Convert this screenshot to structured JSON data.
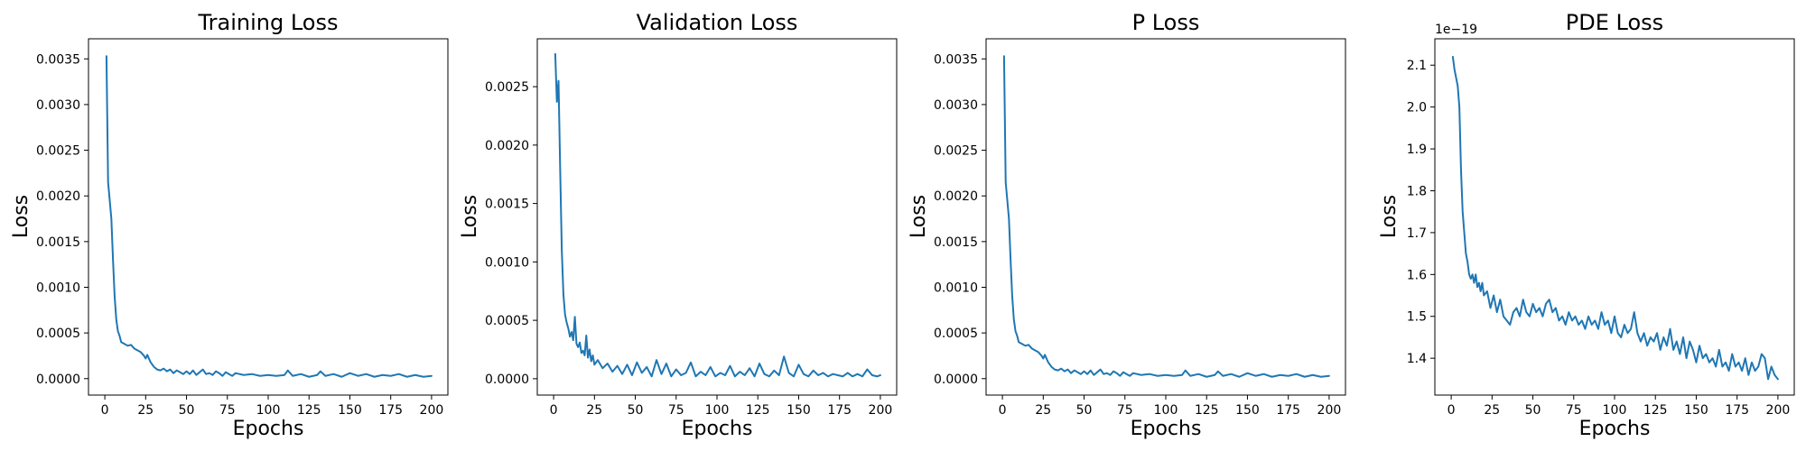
{
  "figure": {
    "panels": [
      {
        "title": "Training Loss",
        "xlabel": "Epochs",
        "ylabel": "Loss"
      },
      {
        "title": "Validation Loss",
        "xlabel": "Epochs",
        "ylabel": "Loss"
      },
      {
        "title": "P Loss",
        "xlabel": "Epochs",
        "ylabel": "Loss"
      },
      {
        "title": "PDE Loss",
        "xlabel": "Epochs",
        "ylabel": "Loss",
        "y_offset_label": "1e−19"
      }
    ]
  },
  "chart_data": [
    {
      "type": "line",
      "title": "Training Loss",
      "xlabel": "Epochs",
      "ylabel": "Loss",
      "xlim": [
        -10,
        210
      ],
      "ylim": [
        -0.00018,
        0.00372
      ],
      "xticks": [
        0,
        25,
        50,
        75,
        100,
        125,
        150,
        175,
        200
      ],
      "xtick_labels": [
        "0",
        "25",
        "50",
        "75",
        "100",
        "125",
        "150",
        "175",
        "200"
      ],
      "yticks": [
        0.0,
        0.0005,
        0.001,
        0.0015,
        0.002,
        0.0025,
        0.003,
        0.0035
      ],
      "ytick_labels": [
        "0.0000",
        "0.0005",
        "0.0010",
        "0.0015",
        "0.0020",
        "0.0025",
        "0.0030",
        "0.0035"
      ],
      "grid": false,
      "color": "#1f77b4",
      "series": [
        {
          "x": [
            1,
            2,
            3,
            4,
            5,
            6,
            7,
            8,
            9,
            10,
            12,
            14,
            16,
            18,
            20,
            22,
            24,
            25,
            26,
            28,
            30,
            32,
            34,
            36,
            38,
            40,
            42,
            44,
            46,
            48,
            50,
            52,
            54,
            56,
            58,
            60,
            62,
            64,
            66,
            68,
            70,
            72,
            74,
            76,
            78,
            80,
            85,
            90,
            95,
            100,
            105,
            110,
            112,
            115,
            120,
            125,
            130,
            132,
            135,
            140,
            145,
            150,
            155,
            160,
            165,
            170,
            175,
            180,
            185,
            190,
            195,
            200
          ],
          "y": [
            0.00353,
            0.00215,
            0.00195,
            0.00175,
            0.0013,
            0.0009,
            0.00065,
            0.00052,
            0.00047,
            0.0004,
            0.00038,
            0.00036,
            0.00037,
            0.00033,
            0.00031,
            0.00029,
            0.00025,
            0.00022,
            0.00026,
            0.00018,
            0.00013,
            0.0001,
            9e-05,
            0.00011,
            8e-05,
            0.0001,
            6e-05,
            9e-05,
            7e-05,
            5e-05,
            8e-05,
            5e-05,
            9e-05,
            4e-05,
            7e-05,
            0.0001,
            5e-05,
            6e-05,
            4e-05,
            8e-05,
            6e-05,
            3e-05,
            7e-05,
            5e-05,
            3e-05,
            6e-05,
            4e-05,
            5e-05,
            3e-05,
            4e-05,
            3e-05,
            4e-05,
            9e-05,
            3e-05,
            5e-05,
            2e-05,
            4e-05,
            8e-05,
            3e-05,
            5e-05,
            2e-05,
            6e-05,
            3e-05,
            5e-05,
            2e-05,
            4e-05,
            3e-05,
            5e-05,
            2e-05,
            4e-05,
            2e-05,
            3e-05
          ]
        }
      ]
    },
    {
      "type": "line",
      "title": "Validation Loss",
      "xlabel": "Epochs",
      "ylabel": "Loss",
      "xlim": [
        -10,
        210
      ],
      "ylim": [
        -0.00014,
        0.00291
      ],
      "xticks": [
        0,
        25,
        50,
        75,
        100,
        125,
        150,
        175,
        200
      ],
      "xtick_labels": [
        "0",
        "25",
        "50",
        "75",
        "100",
        "125",
        "150",
        "175",
        "200"
      ],
      "yticks": [
        0.0,
        0.0005,
        0.001,
        0.0015,
        0.002,
        0.0025
      ],
      "ytick_labels": [
        "0.0000",
        "0.0005",
        "0.0010",
        "0.0015",
        "0.0020",
        "0.0025"
      ],
      "grid": false,
      "color": "#1f77b4",
      "series": [
        {
          "x": [
            1,
            2,
            3,
            4,
            5,
            6,
            7,
            8,
            9,
            10,
            11,
            12,
            13,
            14,
            15,
            16,
            17,
            18,
            19,
            20,
            21,
            22,
            23,
            24,
            25,
            27,
            30,
            33,
            36,
            39,
            42,
            45,
            48,
            51,
            54,
            57,
            60,
            63,
            66,
            69,
            72,
            75,
            78,
            81,
            84,
            87,
            90,
            93,
            96,
            99,
            102,
            105,
            108,
            111,
            114,
            117,
            120,
            123,
            126,
            129,
            132,
            135,
            138,
            141,
            144,
            147,
            150,
            153,
            156,
            159,
            162,
            165,
            168,
            171,
            174,
            177,
            180,
            183,
            186,
            189,
            192,
            195,
            198,
            200
          ],
          "y": [
            0.00278,
            0.00237,
            0.00255,
            0.0018,
            0.0011,
            0.00072,
            0.00055,
            0.00048,
            0.00043,
            0.00036,
            0.0004,
            0.00033,
            0.00053,
            0.0003,
            0.00027,
            0.00031,
            0.00022,
            0.00024,
            0.0002,
            0.00037,
            0.00018,
            0.00025,
            0.00015,
            0.0002,
            0.00012,
            0.00016,
            9e-05,
            0.00013,
            6e-05,
            0.00011,
            4e-05,
            0.00012,
            3e-05,
            0.00014,
            5e-05,
            0.0001,
            2e-05,
            0.00016,
            4e-05,
            0.00013,
            2e-05,
            8e-05,
            3e-05,
            5e-05,
            0.00014,
            2e-05,
            6e-05,
            3e-05,
            0.0001,
            2e-05,
            5e-05,
            3e-05,
            0.00011,
            2e-05,
            6e-05,
            3e-05,
            9e-05,
            2e-05,
            0.00013,
            4e-05,
            2e-05,
            7e-05,
            3e-05,
            0.00019,
            5e-05,
            2e-05,
            0.00012,
            4e-05,
            2e-05,
            7e-05,
            3e-05,
            5e-05,
            2e-05,
            4e-05,
            3e-05,
            2e-05,
            5e-05,
            2e-05,
            4e-05,
            2e-05,
            8e-05,
            3e-05,
            2e-05,
            3e-05
          ]
        }
      ]
    },
    {
      "type": "line",
      "title": "P Loss",
      "xlabel": "Epochs",
      "ylabel": "Loss",
      "xlim": [
        -10,
        210
      ],
      "ylim": [
        -0.00018,
        0.00372
      ],
      "xticks": [
        0,
        25,
        50,
        75,
        100,
        125,
        150,
        175,
        200
      ],
      "xtick_labels": [
        "0",
        "25",
        "50",
        "75",
        "100",
        "125",
        "150",
        "175",
        "200"
      ],
      "yticks": [
        0.0,
        0.0005,
        0.001,
        0.0015,
        0.002,
        0.0025,
        0.003,
        0.0035
      ],
      "ytick_labels": [
        "0.0000",
        "0.0005",
        "0.0010",
        "0.0015",
        "0.0020",
        "0.0025",
        "0.0030",
        "0.0035"
      ],
      "grid": false,
      "color": "#1f77b4",
      "series": [
        {
          "x": [
            1,
            2,
            3,
            4,
            5,
            6,
            7,
            8,
            9,
            10,
            12,
            14,
            16,
            18,
            20,
            22,
            24,
            25,
            26,
            28,
            30,
            32,
            34,
            36,
            38,
            40,
            42,
            44,
            46,
            48,
            50,
            52,
            54,
            56,
            58,
            60,
            62,
            64,
            66,
            68,
            70,
            72,
            74,
            76,
            78,
            80,
            85,
            90,
            95,
            100,
            105,
            110,
            112,
            115,
            120,
            125,
            130,
            132,
            135,
            140,
            145,
            150,
            155,
            160,
            165,
            170,
            175,
            180,
            185,
            190,
            195,
            200
          ],
          "y": [
            0.00353,
            0.00215,
            0.00195,
            0.00175,
            0.0013,
            0.0009,
            0.00065,
            0.00052,
            0.00047,
            0.0004,
            0.00038,
            0.00036,
            0.00037,
            0.00033,
            0.00031,
            0.00029,
            0.00025,
            0.00022,
            0.00026,
            0.00018,
            0.00013,
            0.0001,
            9e-05,
            0.00011,
            8e-05,
            0.0001,
            6e-05,
            9e-05,
            7e-05,
            5e-05,
            8e-05,
            5e-05,
            9e-05,
            4e-05,
            7e-05,
            0.0001,
            5e-05,
            6e-05,
            4e-05,
            8e-05,
            6e-05,
            3e-05,
            7e-05,
            5e-05,
            3e-05,
            6e-05,
            4e-05,
            5e-05,
            3e-05,
            4e-05,
            3e-05,
            4e-05,
            9e-05,
            3e-05,
            5e-05,
            2e-05,
            4e-05,
            8e-05,
            3e-05,
            5e-05,
            2e-05,
            6e-05,
            3e-05,
            5e-05,
            2e-05,
            4e-05,
            3e-05,
            5e-05,
            2e-05,
            4e-05,
            2e-05,
            3e-05
          ]
        }
      ]
    },
    {
      "type": "line",
      "title": "PDE Loss",
      "xlabel": "Epochs",
      "ylabel": "Loss",
      "y_offset_label": "1e−19",
      "xlim": [
        -10,
        210
      ],
      "ylim": [
        1.312,
        2.163
      ],
      "xticks": [
        0,
        25,
        50,
        75,
        100,
        125,
        150,
        175,
        200
      ],
      "xtick_labels": [
        "0",
        "25",
        "50",
        "75",
        "100",
        "125",
        "150",
        "175",
        "200"
      ],
      "yticks": [
        1.4,
        1.5,
        1.6,
        1.7,
        1.8,
        1.9,
        2.0,
        2.1
      ],
      "ytick_labels": [
        "1.4",
        "1.5",
        "1.6",
        "1.7",
        "1.8",
        "1.9",
        "2.0",
        "2.1"
      ],
      "grid": false,
      "color": "#1f77b4",
      "series": [
        {
          "x": [
            1,
            2,
            3,
            4,
            5,
            6,
            7,
            8,
            9,
            10,
            11,
            12,
            13,
            14,
            15,
            16,
            17,
            18,
            19,
            20,
            22,
            24,
            26,
            28,
            30,
            32,
            34,
            36,
            38,
            40,
            42,
            44,
            46,
            48,
            50,
            52,
            54,
            56,
            58,
            60,
            62,
            64,
            66,
            68,
            70,
            72,
            74,
            76,
            78,
            80,
            82,
            84,
            86,
            88,
            90,
            92,
            94,
            96,
            98,
            100,
            102,
            104,
            106,
            108,
            110,
            112,
            114,
            116,
            118,
            120,
            122,
            124,
            126,
            128,
            130,
            132,
            134,
            136,
            138,
            140,
            142,
            144,
            146,
            148,
            150,
            152,
            154,
            156,
            158,
            160,
            162,
            164,
            166,
            168,
            170,
            172,
            174,
            176,
            178,
            180,
            182,
            184,
            186,
            188,
            190,
            192,
            194,
            196,
            198,
            200
          ],
          "y": [
            2.12,
            2.09,
            2.07,
            2.05,
            2.0,
            1.85,
            1.75,
            1.7,
            1.65,
            1.63,
            1.6,
            1.59,
            1.6,
            1.58,
            1.6,
            1.57,
            1.58,
            1.56,
            1.58,
            1.55,
            1.56,
            1.52,
            1.55,
            1.51,
            1.54,
            1.5,
            1.49,
            1.48,
            1.51,
            1.52,
            1.5,
            1.54,
            1.51,
            1.5,
            1.53,
            1.51,
            1.52,
            1.5,
            1.53,
            1.54,
            1.51,
            1.52,
            1.49,
            1.5,
            1.48,
            1.51,
            1.49,
            1.5,
            1.48,
            1.49,
            1.47,
            1.5,
            1.48,
            1.49,
            1.47,
            1.51,
            1.48,
            1.49,
            1.46,
            1.5,
            1.46,
            1.45,
            1.48,
            1.46,
            1.47,
            1.51,
            1.46,
            1.44,
            1.46,
            1.43,
            1.45,
            1.44,
            1.46,
            1.42,
            1.45,
            1.43,
            1.47,
            1.42,
            1.44,
            1.41,
            1.45,
            1.4,
            1.44,
            1.42,
            1.39,
            1.43,
            1.4,
            1.41,
            1.39,
            1.4,
            1.38,
            1.42,
            1.38,
            1.39,
            1.37,
            1.41,
            1.38,
            1.39,
            1.37,
            1.4,
            1.36,
            1.39,
            1.37,
            1.38,
            1.41,
            1.4,
            1.35,
            1.38,
            1.36,
            1.35
          ]
        }
      ]
    }
  ]
}
